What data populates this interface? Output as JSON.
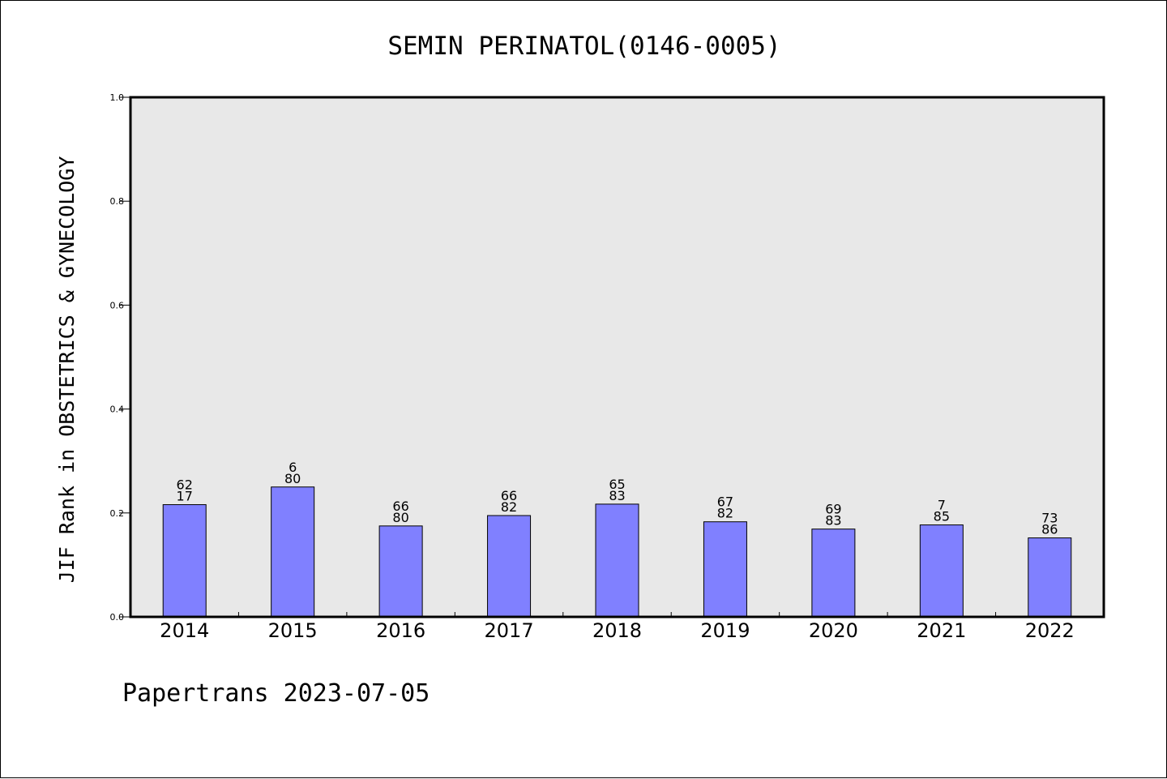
{
  "chart_data": {
    "type": "bar",
    "title": "SEMIN PERINATOL(0146-0005)",
    "ylabel": "JIF Rank in OBSTETRICS & GYNECOLOGY",
    "xlabel": "",
    "ylim": [
      0,
      1.0
    ],
    "yticks": [
      "0.0",
      "0.2",
      "0.4",
      "0.6",
      "0.8",
      "1.0"
    ],
    "categories": [
      "2014",
      "2015",
      "2016",
      "2017",
      "2018",
      "2019",
      "2020",
      "2021",
      "2022"
    ],
    "values": [
      0.216,
      0.25,
      0.175,
      0.195,
      0.217,
      0.183,
      0.169,
      0.177,
      0.152
    ],
    "labels": [
      [
        "62",
        "17"
      ],
      [
        "6",
        "80"
      ],
      [
        "66",
        "80"
      ],
      [
        "66",
        "82"
      ],
      [
        "65",
        "83"
      ],
      [
        "67",
        "82"
      ],
      [
        "69",
        "83"
      ],
      [
        "7",
        "85"
      ],
      [
        "73",
        "86"
      ]
    ],
    "grid": false,
    "colors": {
      "bar": "#8080ff",
      "plot_bg": "#e8e8e8"
    }
  },
  "footer": "Papertrans 2023-07-05"
}
